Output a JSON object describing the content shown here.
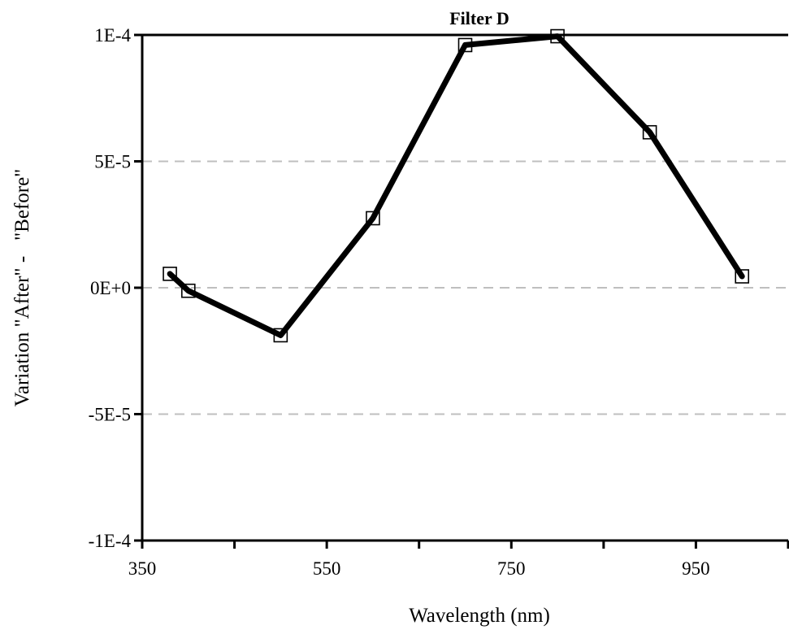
{
  "chart_data": {
    "type": "line",
    "title": "Filter D",
    "xlabel": "Wavelength (nm)",
    "ylabel": "Variation \"After\" -   \"Before\"",
    "xlim": [
      350,
      1050
    ],
    "ylim": [
      -0.0001,
      0.0001
    ],
    "xticks": [
      350,
      550,
      750,
      950
    ],
    "xtick_labels": [
      "350",
      "550",
      "750",
      "950"
    ],
    "yticks": [
      0.0001,
      5e-05,
      0,
      -5e-05,
      -0.0001
    ],
    "ytick_labels": [
      "1E-4",
      "5E-5",
      "0E+0",
      "-5E-5",
      "-1E-4"
    ],
    "grid": "horizontal dashed",
    "series": [
      {
        "marker": "open-square",
        "color": "#000000",
        "x": [
          380,
          400,
          500,
          600,
          700,
          800,
          900,
          1000
        ],
        "y": [
          5.5e-06,
          -1.2e-06,
          -1.88e-05,
          2.75e-05,
          9.6e-05,
          9.95e-05,
          6.15e-05,
          4.5e-06
        ]
      }
    ]
  }
}
